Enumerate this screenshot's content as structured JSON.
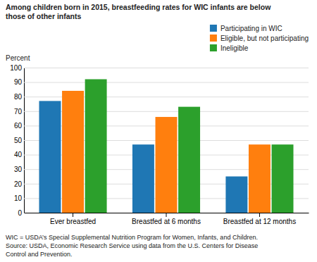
{
  "chart_data": {
    "type": "bar",
    "title": "Among children born in 2015, breastfeeding rates for WIC infants are below\nthose of other infants",
    "ylabel": "Percent",
    "categories": [
      "Ever breastfed",
      "Breastfed at 6 months",
      "Breastfed at 12 months"
    ],
    "series": [
      {
        "name": "Participating in WIC",
        "values": [
          77,
          47,
          25
        ]
      },
      {
        "name": "Eligible, but not participating",
        "values": [
          84,
          66,
          47
        ]
      },
      {
        "name": "Ineligible",
        "values": [
          92,
          73,
          47
        ]
      }
    ],
    "ylim": [
      0,
      100
    ],
    "yticks": [
      0,
      10,
      20,
      30,
      40,
      50,
      60,
      70,
      80,
      90,
      100
    ],
    "grid": true,
    "legend": "upper right",
    "annotations": [
      "WIC = USDA’s Special Supplemental Nutrition Program for Women, Infants, and Children.",
      "Source: USDA, Economic Research Service using data from the U.S. Centers for Disease",
      "Control and Prevention."
    ]
  }
}
